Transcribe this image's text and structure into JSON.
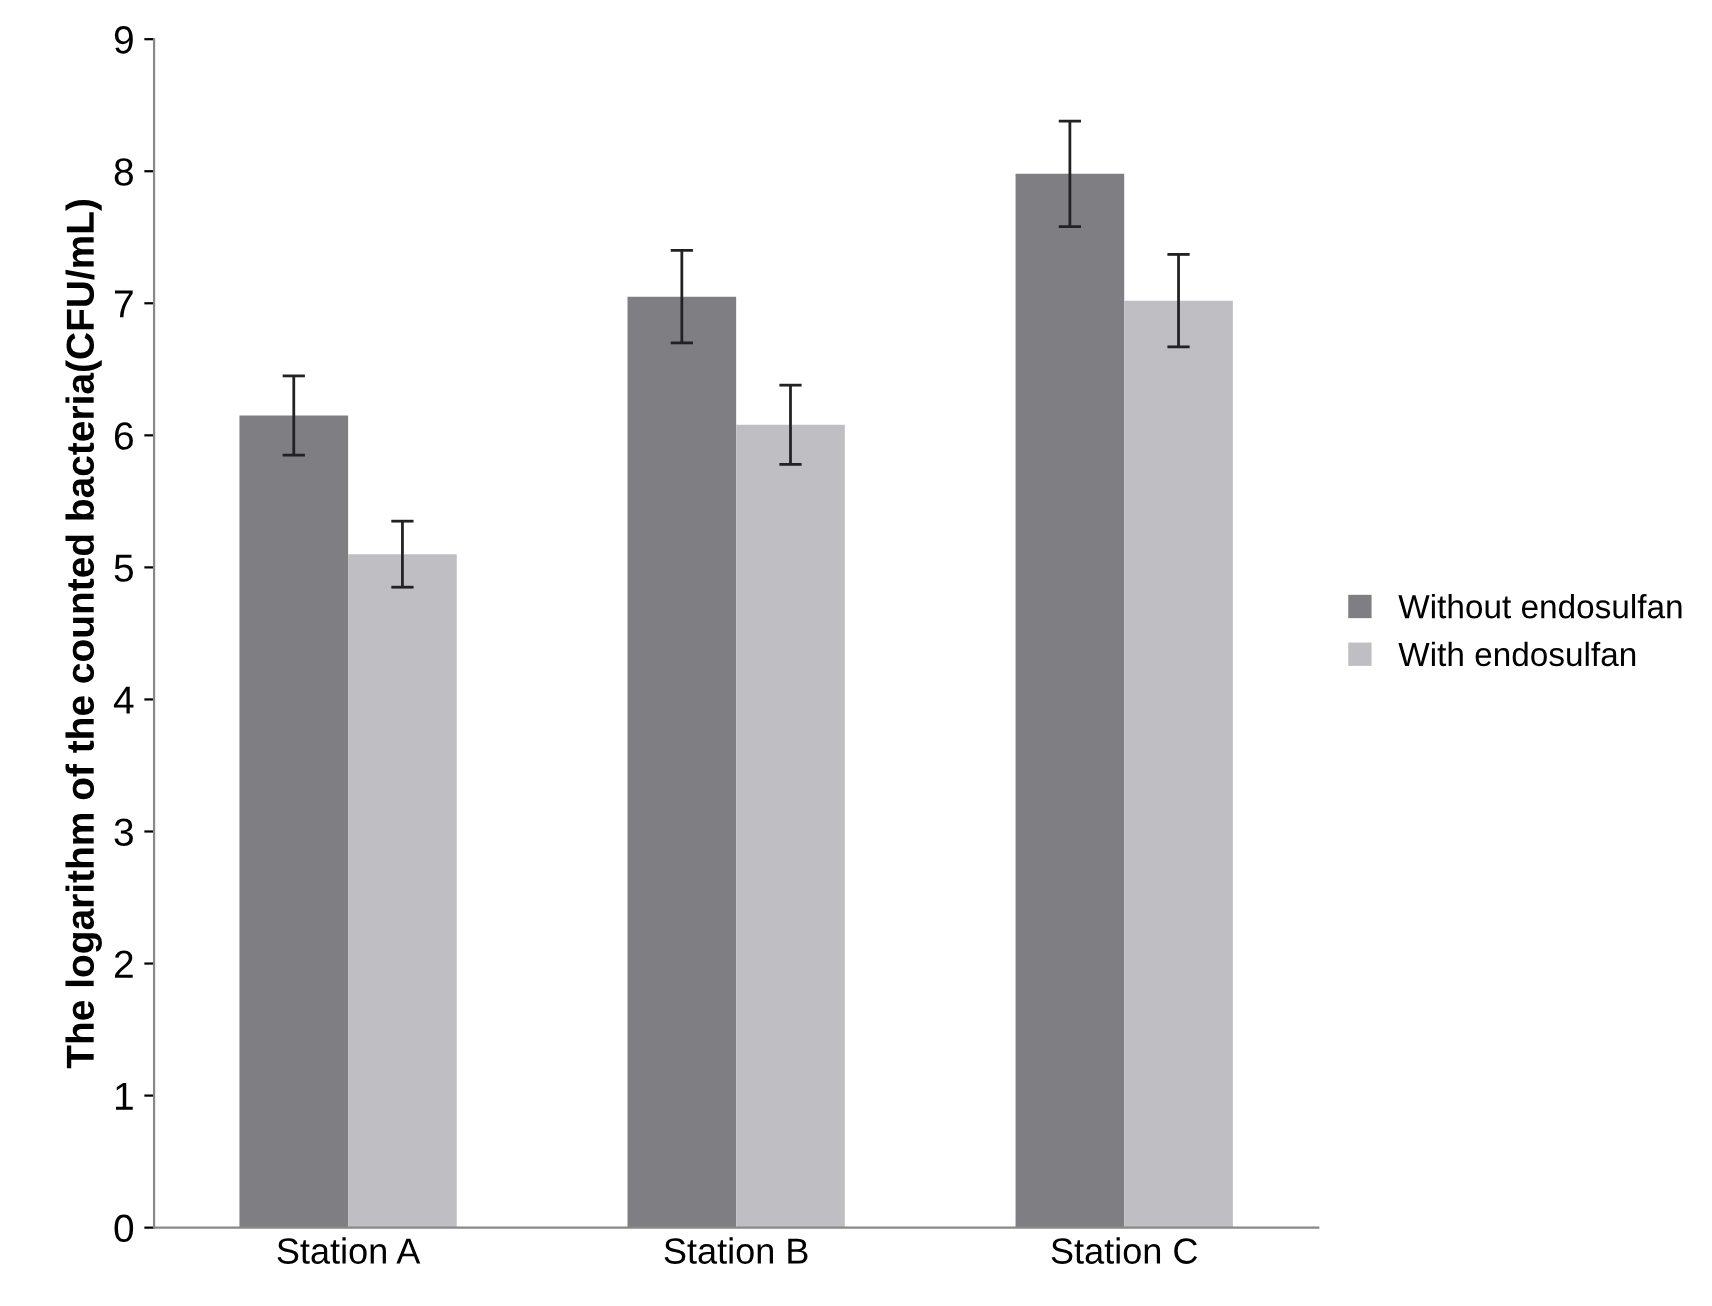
{
  "chart_data": {
    "type": "bar",
    "ylabel": "The logarithm of the counted bacteria(CFU/mL)",
    "categories": [
      "Station A",
      "Station B",
      "Station C"
    ],
    "series": [
      {
        "name": "Without endosulfan",
        "color": "#7f7f83",
        "values": [
          6.15,
          7.05,
          7.98
        ],
        "errors": [
          0.3,
          0.35,
          0.4
        ]
      },
      {
        "name": "With endosulfan",
        "color": "#bfbfc3",
        "values": [
          5.1,
          6.08,
          7.02
        ],
        "errors": [
          0.25,
          0.3,
          0.35
        ]
      }
    ],
    "ylim": [
      0,
      9
    ],
    "yticks": [
      0,
      1,
      2,
      3,
      4,
      5,
      6,
      7,
      8,
      9
    ],
    "grid": false,
    "legend": "right"
  }
}
